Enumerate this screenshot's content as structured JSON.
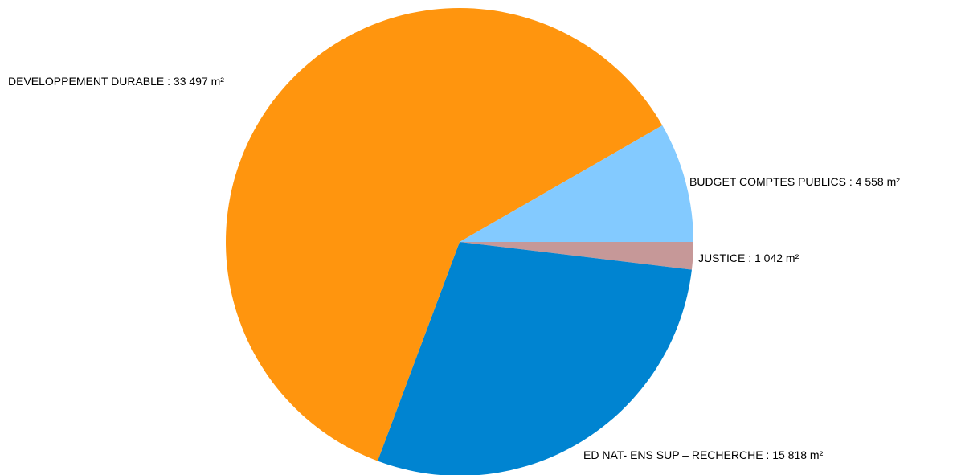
{
  "chart_data": {
    "type": "pie",
    "start_angle_deg": 0,
    "direction": "clockwise",
    "slices": [
      {
        "label": "JUSTICE",
        "value": 1042,
        "text": "JUSTICE  : 1 042 m²",
        "color": "#c69898"
      },
      {
        "label": "ED NAT- ENS SUP – RECHERCHE",
        "value": 15818,
        "text": "ED NAT- ENS SUP – RECHERCHE  : 15 818 m²",
        "color": "#0084d1"
      },
      {
        "label": "DEVELOPPEMENT DURABLE",
        "value": 33497,
        "text": "DEVELOPPEMENT DURABLE  : 33 497 m²",
        "color": "#ff950e"
      },
      {
        "label": "BUDGET COMPTES PUBLICS",
        "value": 4558,
        "text": "BUDGET COMPTES PUBLICS  : 4 558 m²",
        "color": "#83caff"
      }
    ],
    "legend": "none"
  }
}
